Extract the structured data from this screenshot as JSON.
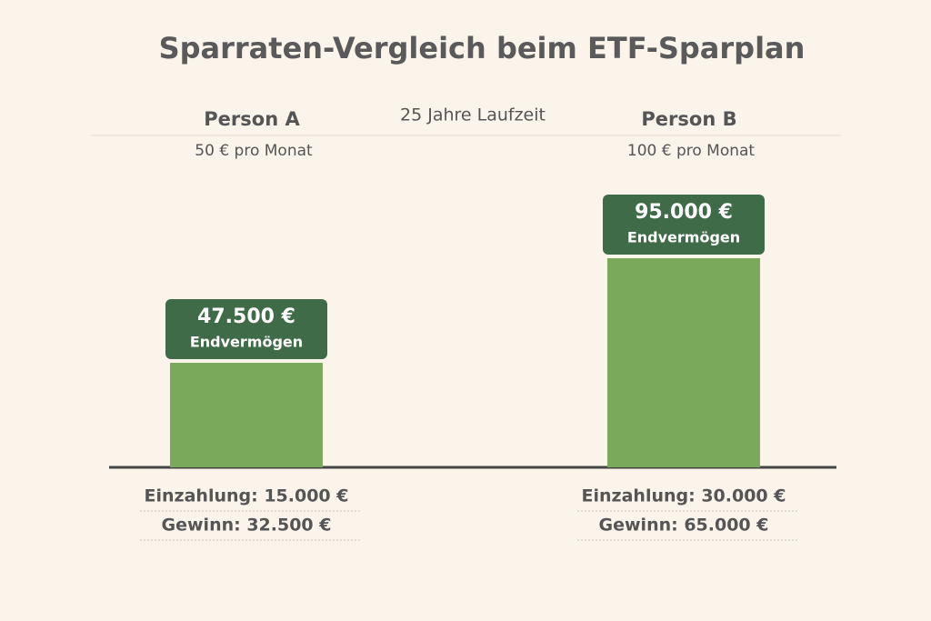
{
  "chart_data": {
    "type": "bar",
    "title": "Sparraten-Vergleich beim ETF-Sparplan",
    "subtitle": "25 Jahre Laufzeit",
    "categories": [
      "Person A",
      "Person B"
    ],
    "category_subtitles": [
      "50 € pro Monat",
      "100 € pro Monat"
    ],
    "values": [
      47500,
      95000
    ],
    "value_labels": [
      "47.500 €",
      "95.000 €"
    ],
    "value_captions": [
      "Endvermögen",
      "Endvermögen"
    ],
    "color": "#7aa95c",
    "label_color": "#3f6b48",
    "footnotes": [
      [
        "Einzahlung: 15.000 €",
        "Gewinn: 32.500 €"
      ],
      [
        "Einzahlung: 30.000 €",
        "Gewinn: 65.000 €"
      ]
    ]
  }
}
